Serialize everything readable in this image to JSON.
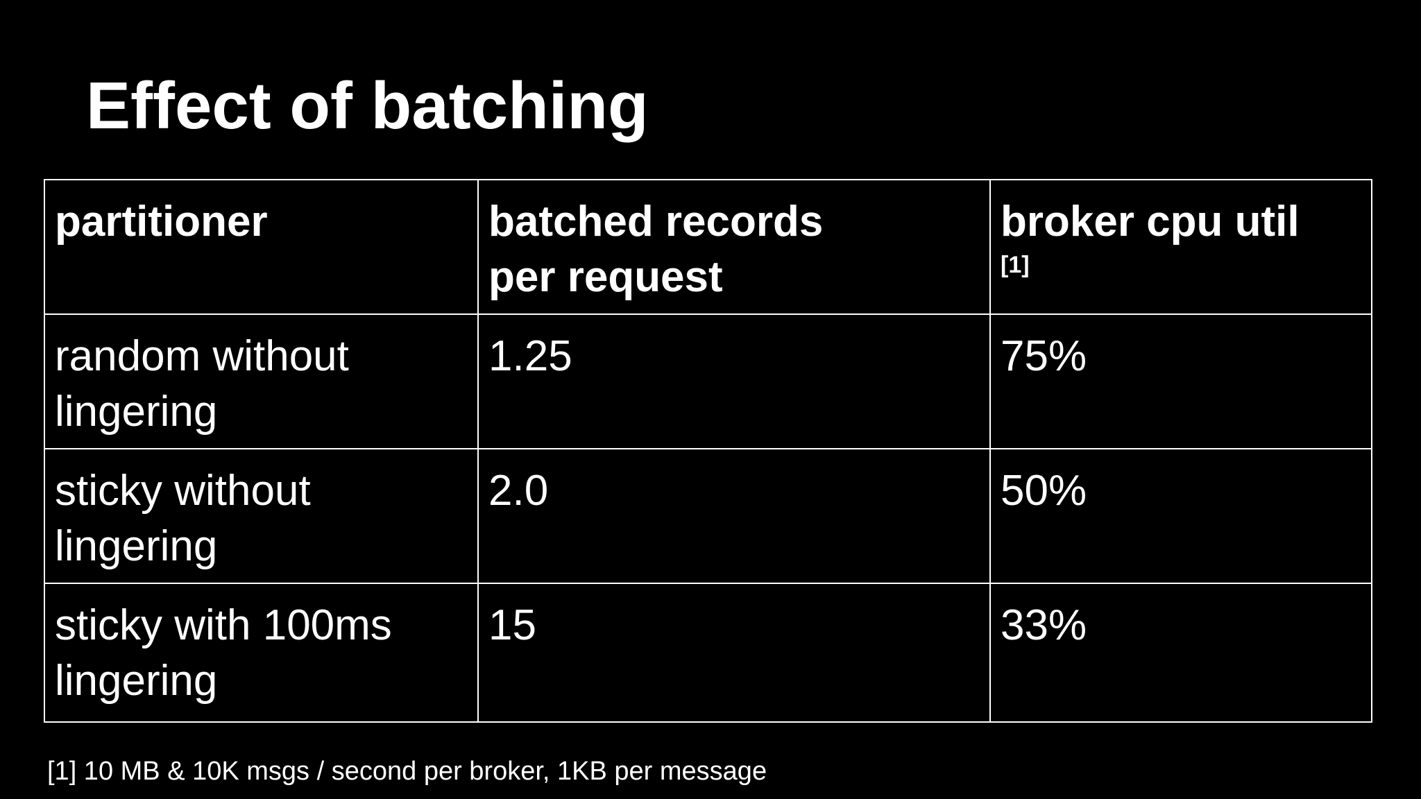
{
  "slide": {
    "title": "Effect of batching",
    "footnote": "[1] 10 MB & 10K msgs / second per broker, 1KB per message"
  },
  "table": {
    "headers": {
      "col1": "partitioner",
      "col2_line1": "batched records",
      "col2_line2": "per request",
      "col3": "broker cpu util",
      "col3_ref": "[1]"
    },
    "rows": [
      {
        "partitioner_line1": "random without",
        "partitioner_line2": "lingering",
        "batched": "1.25",
        "cpu": "75%"
      },
      {
        "partitioner_line1": "sticky without",
        "partitioner_line2": "lingering",
        "batched": "2.0",
        "cpu": "50%"
      },
      {
        "partitioner_line1": "sticky with 100ms",
        "partitioner_line2": "lingering",
        "batched": "15",
        "cpu": "33%"
      }
    ]
  },
  "colors": {
    "background": "#000000",
    "text": "#ffffff",
    "border": "#ffffff"
  }
}
